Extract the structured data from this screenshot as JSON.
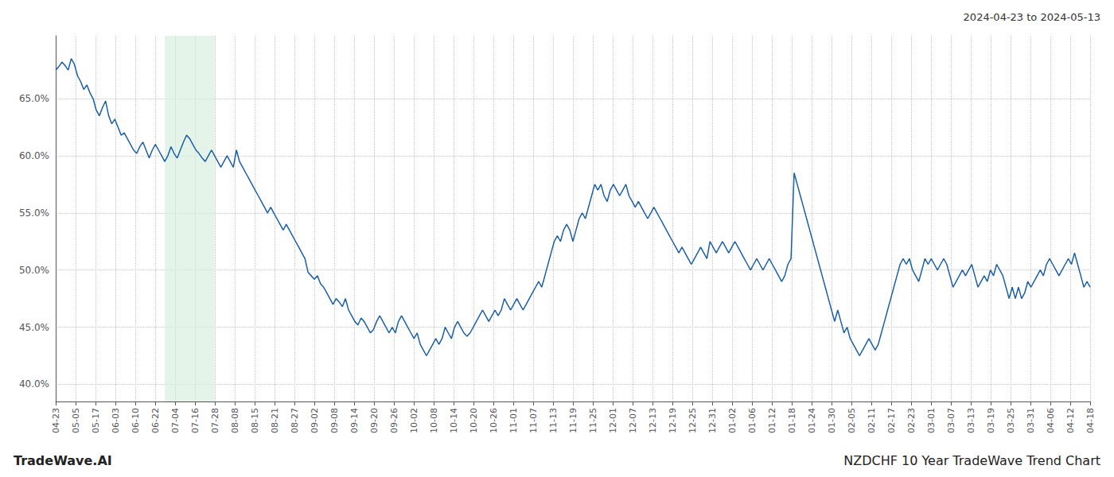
{
  "chart_data": {
    "type": "line",
    "title": "NZDCHF 10 Year TradeWave Trend Chart",
    "subtitle": "2024-04-23 to 2024-05-13",
    "annotations": [
      "TradeWave.AI"
    ],
    "color": "#1a5fa8",
    "grid": true,
    "shade": [
      35,
      51
    ],
    "shade_color": "#d4edda",
    "xlim": [
      0,
      332
    ],
    "xticks": [
      {
        "value": 0,
        "label": "04-23"
      },
      {
        "value": 6.384615384615,
        "label": "05-05"
      },
      {
        "value": 12.769230769231,
        "label": "05-17"
      },
      {
        "value": 19.153846153846,
        "label": "06-03"
      },
      {
        "value": 25.538461538462,
        "label": "06-10"
      },
      {
        "value": 31.923076923077,
        "label": "06-22"
      },
      {
        "value": 38.307692307692,
        "label": "07-04"
      },
      {
        "value": 44.692307692308,
        "label": "07-16"
      },
      {
        "value": 51.076923076923,
        "label": "07-28"
      },
      {
        "value": 57.461538461538,
        "label": "08-08"
      },
      {
        "value": 63.846153846154,
        "label": "08-15"
      },
      {
        "value": 70.230769230769,
        "label": "08-21"
      },
      {
        "value": 76.615384615385,
        "label": "08-27"
      },
      {
        "value": 83,
        "label": "09-02"
      },
      {
        "value": 89.384615384615,
        "label": "09-08"
      },
      {
        "value": 95.769230769231,
        "label": "09-14"
      },
      {
        "value": 102.153846153846,
        "label": "09-20"
      },
      {
        "value": 108.538461538462,
        "label": "09-26"
      },
      {
        "value": 114.923076923077,
        "label": "10-02"
      },
      {
        "value": 121.307692307692,
        "label": "10-08"
      },
      {
        "value": 127.692307692308,
        "label": "10-14"
      },
      {
        "value": 134.076923076923,
        "label": "10-20"
      },
      {
        "value": 140.461538461538,
        "label": "10-26"
      },
      {
        "value": 146.846153846154,
        "label": "11-01"
      },
      {
        "value": 153.230769230769,
        "label": "11-07"
      },
      {
        "value": 159.615384615385,
        "label": "11-13"
      },
      {
        "value": 166,
        "label": "11-19"
      },
      {
        "value": 172.384615384615,
        "label": "11-25"
      },
      {
        "value": 178.769230769231,
        "label": "12-01"
      },
      {
        "value": 185.153846153846,
        "label": "12-07"
      },
      {
        "value": 191.538461538462,
        "label": "12-13"
      },
      {
        "value": 197.923076923077,
        "label": "12-19"
      },
      {
        "value": 204.307692307692,
        "label": "12-25"
      },
      {
        "value": 210.692307692308,
        "label": "12-31"
      },
      {
        "value": 217.076923076923,
        "label": "01-02"
      },
      {
        "value": 223.461538461538,
        "label": "01-06"
      },
      {
        "value": 229.846153846154,
        "label": "01-12"
      },
      {
        "value": 236.230769230769,
        "label": "01-18"
      },
      {
        "value": 242.615384615385,
        "label": "01-24"
      },
      {
        "value": 249,
        "label": "01-30"
      },
      {
        "value": 255.384615384615,
        "label": "02-05"
      },
      {
        "value": 261.769230769231,
        "label": "02-11"
      },
      {
        "value": 268.153846153846,
        "label": "02-17"
      },
      {
        "value": 274.538461538462,
        "label": "02-23"
      },
      {
        "value": 280.923076923077,
        "label": "03-01"
      },
      {
        "value": 287.307692307692,
        "label": "03-07"
      },
      {
        "value": 293.692307692308,
        "label": "03-13"
      },
      {
        "value": 300.076923076923,
        "label": "03-19"
      },
      {
        "value": 306.461538461538,
        "label": "03-25"
      },
      {
        "value": 312.846153846154,
        "label": "03-31"
      },
      {
        "value": 319.230769230769,
        "label": "04-06"
      },
      {
        "value": 325.615384615385,
        "label": "04-12"
      },
      {
        "value": 332,
        "label": "04-18"
      }
    ],
    "ylim": [
      38.5,
      70.5
    ],
    "yticks": [
      {
        "value": 40.0,
        "label": "40.0%"
      },
      {
        "value": 45.0,
        "label": "45.0%"
      },
      {
        "value": 50.0,
        "label": "50.0%"
      },
      {
        "value": 55.0,
        "label": "55.0%"
      },
      {
        "value": 60.0,
        "label": "60.0%"
      },
      {
        "value": 65.0,
        "label": "65.0%"
      }
    ],
    "values": [
      67.5,
      67.8,
      68.2,
      67.9,
      67.5,
      68.5,
      68.0,
      67.0,
      66.5,
      65.8,
      66.2,
      65.5,
      65.0,
      64.0,
      63.5,
      64.2,
      64.8,
      63.5,
      62.8,
      63.2,
      62.5,
      61.8,
      62.0,
      61.5,
      61.0,
      60.5,
      60.2,
      60.8,
      61.2,
      60.5,
      59.8,
      60.5,
      61.0,
      60.5,
      60.0,
      59.5,
      60.0,
      60.8,
      60.2,
      59.8,
      60.5,
      61.2,
      61.8,
      61.5,
      61.0,
      60.5,
      60.2,
      59.8,
      59.5,
      60.0,
      60.5,
      60.0,
      59.5,
      59.0,
      59.5,
      60.0,
      59.5,
      59.0,
      60.5,
      59.5,
      59.0,
      58.5,
      58.0,
      57.5,
      57.0,
      56.5,
      56.0,
      55.5,
      55.0,
      55.5,
      55.0,
      54.5,
      54.0,
      53.5,
      54.0,
      53.5,
      53.0,
      52.5,
      52.0,
      51.5,
      51.0,
      49.8,
      49.5,
      49.2,
      49.5,
      48.8,
      48.5,
      48.0,
      47.5,
      47.0,
      47.5,
      47.2,
      46.8,
      47.5,
      46.5,
      46.0,
      45.5,
      45.2,
      45.8,
      45.5,
      45.0,
      44.5,
      44.8,
      45.5,
      46.0,
      45.5,
      45.0,
      44.5,
      45.0,
      44.5,
      45.5,
      46.0,
      45.5,
      45.0,
      44.5,
      44.0,
      44.5,
      43.5,
      43.0,
      42.5,
      43.0,
      43.5,
      44.0,
      43.5,
      44.0,
      45.0,
      44.5,
      44.0,
      45.0,
      45.5,
      45.0,
      44.5,
      44.2,
      44.5,
      45.0,
      45.5,
      46.0,
      46.5,
      46.0,
      45.5,
      46.0,
      46.5,
      46.0,
      46.5,
      47.5,
      47.0,
      46.5,
      47.0,
      47.5,
      47.0,
      46.5,
      47.0,
      47.5,
      48.0,
      48.5,
      49.0,
      48.5,
      49.5,
      50.5,
      51.5,
      52.5,
      53.0,
      52.5,
      53.5,
      54.0,
      53.5,
      52.5,
      53.5,
      54.5,
      55.0,
      54.5,
      55.5,
      56.5,
      57.5,
      57.0,
      57.5,
      56.5,
      56.0,
      57.0,
      57.5,
      57.0,
      56.5,
      57.0,
      57.5,
      56.5,
      56.0,
      55.5,
      56.0,
      55.5,
      55.0,
      54.5,
      55.0,
      55.5,
      55.0,
      54.5,
      54.0,
      53.5,
      53.0,
      52.5,
      52.0,
      51.5,
      52.0,
      51.5,
      51.0,
      50.5,
      51.0,
      51.5,
      52.0,
      51.5,
      51.0,
      52.5,
      52.0,
      51.5,
      52.0,
      52.5,
      52.0,
      51.5,
      52.0,
      52.5,
      52.0,
      51.5,
      51.0,
      50.5,
      50.0,
      50.5,
      51.0,
      50.5,
      50.0,
      50.5,
      51.0,
      50.5,
      50.0,
      49.5,
      49.0,
      49.5,
      50.5,
      51.0,
      58.5,
      57.5,
      56.5,
      55.5,
      54.5,
      53.5,
      52.5,
      51.5,
      50.5,
      49.5,
      48.5,
      47.5,
      46.5,
      45.5,
      46.5,
      45.5,
      44.5,
      45.0,
      44.0,
      43.5,
      43.0,
      42.5,
      43.0,
      43.5,
      44.0,
      43.5,
      43.0,
      43.5,
      44.5,
      45.5,
      46.5,
      47.5,
      48.5,
      49.5,
      50.5,
      51.0,
      50.5,
      51.0,
      50.0,
      49.5,
      49.0,
      50.0,
      51.0,
      50.5,
      51.0,
      50.5,
      50.0,
      50.5,
      51.0,
      50.5,
      49.5,
      48.5,
      49.0,
      49.5,
      50.0,
      49.5,
      50.0,
      50.5,
      49.5,
      48.5,
      49.0,
      49.5,
      49.0,
      50.0,
      49.5,
      50.5,
      50.0,
      49.5,
      48.5,
      47.5,
      48.5,
      47.5,
      48.5,
      47.5,
      48.0,
      49.0,
      48.5,
      49.0,
      49.5,
      50.0,
      49.5,
      50.5,
      51.0,
      50.5,
      50.0,
      49.5,
      50.0,
      50.5,
      51.0,
      50.5,
      51.5,
      50.5,
      49.5,
      48.5,
      49.0,
      48.5
    ]
  }
}
